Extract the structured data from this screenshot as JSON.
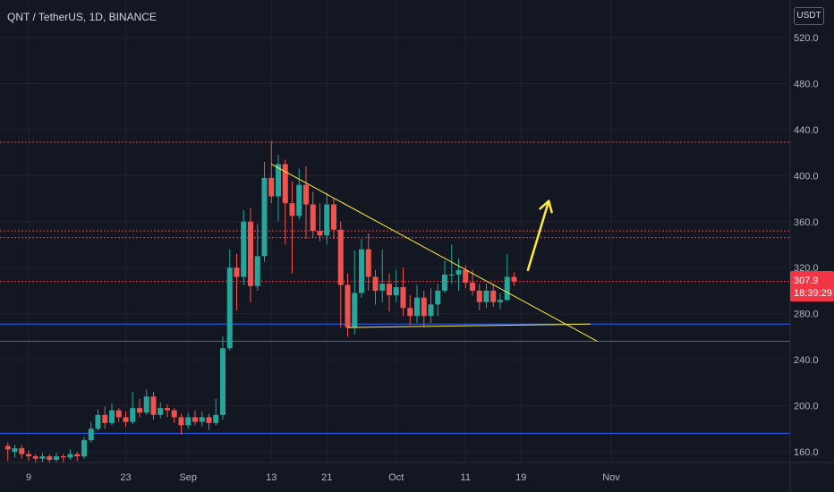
{
  "header": {
    "symbol_title": "QNT / TetherUS, 1D, BINANCE",
    "currency": "USDT"
  },
  "price_label": {
    "price": "307.9",
    "countdown": "18:39:29"
  },
  "colors": {
    "background": "#131722",
    "up": "#26a69a",
    "down": "#ef5350",
    "resistance": "#f23645",
    "support": "#2962ff",
    "trendline": "#ffeb3b",
    "axis_text": "#b2b5be"
  },
  "chart_data": {
    "type": "candlestick",
    "title": "QNT / TetherUS, 1D, BINANCE",
    "ylim": [
      145,
      545
    ],
    "y_ticks": [
      160,
      200,
      240,
      280,
      320,
      360,
      400,
      440,
      480,
      520
    ],
    "y_tick_labels": [
      "160.0",
      "200.0",
      "240.0",
      "280.0",
      "320.0",
      "360.0",
      "400.0",
      "440.0",
      "480.0",
      "520.0"
    ],
    "x_ticks": [
      {
        "label": "9",
        "day": 0
      },
      {
        "label": "23",
        "day": 14
      },
      {
        "label": "Sep",
        "day": 23
      },
      {
        "label": "13",
        "day": 35
      },
      {
        "label": "21",
        "day": 43
      },
      {
        "label": "Oct",
        "day": 53
      },
      {
        "label": "11",
        "day": 63
      },
      {
        "label": "19",
        "day": 71
      },
      {
        "label": "Nov",
        "day": 84
      }
    ],
    "candles": [
      [
        -3,
        165,
        162,
        168,
        152
      ],
      [
        -2,
        160,
        163,
        166,
        155
      ],
      [
        -1,
        163,
        158,
        166,
        154
      ],
      [
        0,
        158,
        156,
        161,
        152
      ],
      [
        1,
        156,
        154,
        158,
        150
      ],
      [
        2,
        154,
        156,
        159,
        151
      ],
      [
        3,
        156,
        153,
        158,
        150
      ],
      [
        4,
        153,
        156,
        159,
        151
      ],
      [
        5,
        156,
        155,
        158,
        150
      ],
      [
        6,
        155,
        158,
        162,
        153
      ],
      [
        7,
        158,
        156,
        160,
        152
      ],
      [
        8,
        156,
        170,
        173,
        154
      ],
      [
        9,
        170,
        180,
        186,
        168
      ],
      [
        10,
        180,
        192,
        197,
        178
      ],
      [
        11,
        192,
        185,
        199,
        180
      ],
      [
        12,
        185,
        196,
        202,
        183
      ],
      [
        13,
        196,
        190,
        198,
        186
      ],
      [
        14,
        190,
        186,
        195,
        182
      ],
      [
        15,
        186,
        198,
        212,
        184
      ],
      [
        16,
        198,
        194,
        206,
        190
      ],
      [
        17,
        194,
        208,
        214,
        192
      ],
      [
        18,
        208,
        192,
        212,
        188
      ],
      [
        19,
        192,
        198,
        203,
        189
      ],
      [
        20,
        198,
        196,
        201,
        190
      ],
      [
        21,
        196,
        190,
        198,
        185
      ],
      [
        22,
        190,
        183,
        193,
        175
      ],
      [
        23,
        183,
        190,
        194,
        180
      ],
      [
        24,
        190,
        186,
        196,
        183
      ],
      [
        25,
        186,
        190,
        195,
        182
      ],
      [
        26,
        190,
        185,
        193,
        179
      ],
      [
        27,
        185,
        192,
        206,
        183
      ],
      [
        28,
        192,
        250,
        260,
        188
      ],
      [
        29,
        250,
        320,
        336,
        248
      ],
      [
        30,
        320,
        312,
        332,
        283
      ],
      [
        31,
        312,
        360,
        370,
        305
      ],
      [
        32,
        360,
        304,
        372,
        290
      ],
      [
        33,
        304,
        330,
        358,
        300
      ],
      [
        34,
        330,
        398,
        412,
        325
      ],
      [
        35,
        398,
        382,
        430,
        376
      ],
      [
        36,
        382,
        410,
        418,
        360
      ],
      [
        37,
        410,
        376,
        414,
        340
      ],
      [
        38,
        376,
        365,
        395,
        315
      ],
      [
        39,
        365,
        392,
        406,
        362
      ],
      [
        40,
        392,
        375,
        408,
        345
      ],
      [
        41,
        375,
        352,
        386,
        346
      ],
      [
        42,
        352,
        348,
        376,
        343
      ],
      [
        43,
        348,
        375,
        385,
        340
      ],
      [
        44,
        375,
        353,
        380,
        345
      ],
      [
        45,
        353,
        305,
        360,
        268
      ],
      [
        46,
        305,
        268,
        315,
        260
      ],
      [
        47,
        268,
        298,
        335,
        262
      ],
      [
        48,
        298,
        336,
        345,
        294
      ],
      [
        49,
        336,
        312,
        350,
        300
      ],
      [
        50,
        312,
        300,
        318,
        288
      ],
      [
        51,
        300,
        306,
        336,
        290
      ],
      [
        52,
        306,
        296,
        315,
        282
      ],
      [
        53,
        296,
        303,
        318,
        290
      ],
      [
        54,
        303,
        285,
        320,
        278
      ],
      [
        55,
        285,
        278,
        296,
        270
      ],
      [
        56,
        278,
        294,
        305,
        272
      ],
      [
        57,
        294,
        278,
        300,
        268
      ],
      [
        58,
        278,
        288,
        302,
        272
      ],
      [
        59,
        288,
        300,
        306,
        278
      ],
      [
        60,
        300,
        314,
        326,
        298
      ],
      [
        61,
        314,
        314,
        340,
        306
      ],
      [
        62,
        314,
        318,
        328,
        300
      ],
      [
        63,
        318,
        307,
        322,
        302
      ],
      [
        64,
        307,
        300,
        318,
        296
      ],
      [
        65,
        300,
        290,
        306,
        283
      ],
      [
        66,
        290,
        300,
        306,
        285
      ],
      [
        67,
        300,
        290,
        306,
        286
      ],
      [
        68,
        290,
        292,
        298,
        284
      ],
      [
        69,
        292,
        312,
        332,
        291
      ],
      [
        70,
        312,
        308,
        316,
        304
      ]
    ],
    "horizontal_lines": [
      {
        "price": 429,
        "color": "#f23645",
        "style": "dotted"
      },
      {
        "price": 352,
        "color": "#f23645",
        "style": "dotted"
      },
      {
        "price": 346,
        "color": "#f23645",
        "style": "dotted"
      },
      {
        "price": 308,
        "color": "#f23645",
        "style": "dotted"
      },
      {
        "price": 271,
        "color": "#2962ff",
        "style": "solid"
      },
      {
        "price": 256,
        "color": "#2962ff",
        "style": "solid"
      },
      {
        "price": 176,
        "color": "#2962ff",
        "style": "solid"
      }
    ],
    "trendlines": [
      {
        "from": [
          35,
          410
        ],
        "to": [
          82,
          256
        ]
      },
      {
        "from": [
          46,
          268
        ],
        "to": [
          81,
          271
        ]
      }
    ],
    "arrow": {
      "from": [
        72,
        318
      ],
      "to": [
        75,
        378
      ]
    }
  }
}
